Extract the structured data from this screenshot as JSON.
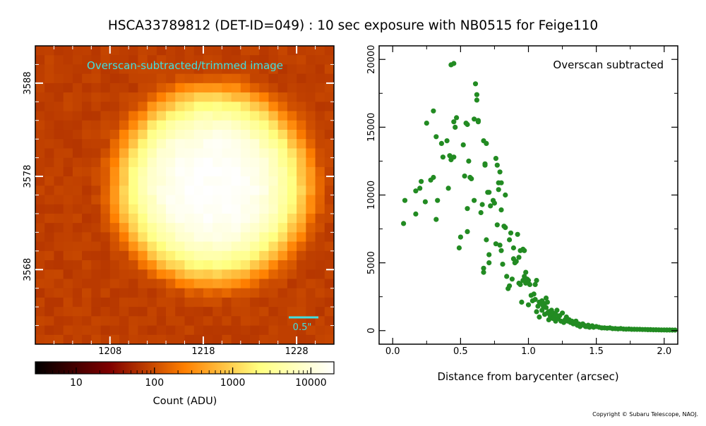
{
  "title": "HSCA33789812 (DET-ID=049) :  10 sec exposure with NB0515 for Feige110",
  "copyright": "Copyright © Subaru Telescope, NAOJ.",
  "colors": {
    "image_label": "#40e0e0",
    "scatter_point": "#228b22",
    "scale_bar": "#40e0e0"
  },
  "chart_data": [
    {
      "type": "heatmap",
      "annotation": "Overscan-subtracted/trimmed image",
      "scale_bar_label": "0.5\"",
      "x_ticks": [
        1208,
        1218,
        1228
      ],
      "y_ticks": [
        3568,
        3578,
        3588
      ],
      "xlim": [
        1200,
        1232
      ],
      "ylim": [
        3560,
        3592
      ],
      "peak_center": [
        1219,
        3577
      ],
      "peak_value": 19700,
      "background_value": 80,
      "colorbar": {
        "label": "Count (ADU)",
        "scale": "log",
        "range": [
          3,
          19700
        ],
        "tick_labels": [
          "10",
          "100",
          "1000",
          "10000"
        ],
        "tick_values": [
          10,
          100,
          1000,
          10000
        ]
      }
    },
    {
      "type": "scatter",
      "annotation": "Overscan subtracted",
      "xlabel": "Distance from barycenter (arcsec)",
      "ylabel": "",
      "xlim": [
        -0.1,
        2.1
      ],
      "ylim": [
        -1000,
        21000
      ],
      "x_ticks": [
        0.0,
        0.5,
        1.0,
        1.5,
        2.0
      ],
      "x_tick_labels": [
        "0.0",
        "0.5",
        "1.0",
        "1.5",
        "2.0"
      ],
      "y_ticks": [
        0,
        5000,
        10000,
        15000,
        20000
      ],
      "y_tick_labels": [
        "0",
        "5000",
        "10000",
        "15000",
        "20000"
      ],
      "points": [
        [
          0.08,
          7900
        ],
        [
          0.09,
          9600
        ],
        [
          0.17,
          8600
        ],
        [
          0.17,
          10300
        ],
        [
          0.2,
          10500
        ],
        [
          0.21,
          11000
        ],
        [
          0.24,
          9500
        ],
        [
          0.25,
          15300
        ],
        [
          0.28,
          11100
        ],
        [
          0.3,
          11300
        ],
        [
          0.3,
          16200
        ],
        [
          0.32,
          14300
        ],
        [
          0.32,
          8200
        ],
        [
          0.33,
          9600
        ],
        [
          0.36,
          13800
        ],
        [
          0.37,
          12800
        ],
        [
          0.4,
          14000
        ],
        [
          0.41,
          10500
        ],
        [
          0.42,
          12900
        ],
        [
          0.43,
          19600
        ],
        [
          0.43,
          12600
        ],
        [
          0.45,
          12800
        ],
        [
          0.45,
          19700
        ],
        [
          0.45,
          15400
        ],
        [
          0.46,
          15000
        ],
        [
          0.47,
          15700
        ],
        [
          0.49,
          6100
        ],
        [
          0.5,
          6900
        ],
        [
          0.52,
          13700
        ],
        [
          0.53,
          11400
        ],
        [
          0.54,
          15300
        ],
        [
          0.55,
          15200
        ],
        [
          0.55,
          7300
        ],
        [
          0.55,
          9000
        ],
        [
          0.56,
          12500
        ],
        [
          0.57,
          11300
        ],
        [
          0.58,
          11200
        ],
        [
          0.6,
          15600
        ],
        [
          0.6,
          9600
        ],
        [
          0.61,
          18200
        ],
        [
          0.62,
          17400
        ],
        [
          0.62,
          17000
        ],
        [
          0.63,
          15400
        ],
        [
          0.63,
          15500
        ],
        [
          0.65,
          8700
        ],
        [
          0.66,
          9300
        ],
        [
          0.67,
          4300
        ],
        [
          0.67,
          4600
        ],
        [
          0.67,
          14000
        ],
        [
          0.68,
          12200
        ],
        [
          0.68,
          12300
        ],
        [
          0.69,
          6700
        ],
        [
          0.69,
          13800
        ],
        [
          0.7,
          10200
        ],
        [
          0.71,
          10200
        ],
        [
          0.71,
          5600
        ],
        [
          0.71,
          5000
        ],
        [
          0.72,
          9200
        ],
        [
          0.74,
          9600
        ],
        [
          0.75,
          9400
        ],
        [
          0.76,
          12700
        ],
        [
          0.76,
          6400
        ],
        [
          0.77,
          7800
        ],
        [
          0.77,
          12200
        ],
        [
          0.78,
          10900
        ],
        [
          0.78,
          10400
        ],
        [
          0.79,
          11700
        ],
        [
          0.79,
          6300
        ],
        [
          0.8,
          10900
        ],
        [
          0.8,
          8900
        ],
        [
          0.8,
          5900
        ],
        [
          0.81,
          4900
        ],
        [
          0.82,
          7700
        ],
        [
          0.83,
          10000
        ],
        [
          0.83,
          7600
        ],
        [
          0.84,
          4000
        ],
        [
          0.85,
          3100
        ],
        [
          0.86,
          6700
        ],
        [
          0.86,
          3300
        ],
        [
          0.87,
          7200
        ],
        [
          0.88,
          3800
        ],
        [
          0.89,
          5300
        ],
        [
          0.89,
          6100
        ],
        [
          0.9,
          5000
        ],
        [
          0.91,
          5100
        ],
        [
          0.92,
          7100
        ],
        [
          0.93,
          5400
        ],
        [
          0.93,
          3500
        ],
        [
          0.94,
          3400
        ],
        [
          0.94,
          5900
        ],
        [
          0.95,
          2100
        ],
        [
          0.96,
          6000
        ],
        [
          0.96,
          3700
        ],
        [
          0.97,
          4000
        ],
        [
          0.97,
          5900
        ],
        [
          0.98,
          4300
        ],
        [
          0.98,
          3500
        ],
        [
          0.99,
          3800
        ],
        [
          1.0,
          1900
        ],
        [
          1.0,
          3700
        ],
        [
          1.01,
          3400
        ],
        [
          1.02,
          2600
        ],
        [
          1.03,
          2200
        ],
        [
          1.04,
          2700
        ],
        [
          1.05,
          3400
        ],
        [
          1.05,
          2300
        ],
        [
          1.06,
          3700
        ],
        [
          1.06,
          1400
        ],
        [
          1.07,
          1800
        ],
        [
          1.08,
          2100
        ],
        [
          1.08,
          1000
        ],
        [
          1.09,
          2000
        ],
        [
          1.1,
          1500
        ],
        [
          1.1,
          2200
        ],
        [
          1.11,
          1800
        ],
        [
          1.12,
          2000
        ],
        [
          1.12,
          1200
        ],
        [
          1.13,
          2400
        ],
        [
          1.13,
          1700
        ],
        [
          1.14,
          2100
        ],
        [
          1.14,
          1300
        ],
        [
          1.15,
          1400
        ],
        [
          1.15,
          800
        ],
        [
          1.16,
          1100
        ],
        [
          1.17,
          1500
        ],
        [
          1.18,
          1300
        ],
        [
          1.18,
          900
        ],
        [
          1.19,
          1000
        ],
        [
          1.2,
          1200
        ],
        [
          1.2,
          700
        ],
        [
          1.21,
          1500
        ],
        [
          1.22,
          900
        ],
        [
          1.23,
          1100
        ],
        [
          1.24,
          700
        ],
        [
          1.25,
          1300
        ],
        [
          1.26,
          600
        ],
        [
          1.27,
          800
        ],
        [
          1.28,
          1000
        ],
        [
          1.29,
          700
        ],
        [
          1.3,
          800
        ],
        [
          1.31,
          600
        ],
        [
          1.32,
          700
        ],
        [
          1.33,
          500
        ],
        [
          1.34,
          600
        ],
        [
          1.35,
          700
        ],
        [
          1.36,
          400
        ],
        [
          1.37,
          500
        ],
        [
          1.38,
          300
        ],
        [
          1.39,
          400
        ],
        [
          1.4,
          500
        ],
        [
          1.41,
          400
        ],
        [
          1.42,
          300
        ],
        [
          1.43,
          300
        ],
        [
          1.44,
          400
        ],
        [
          1.45,
          250
        ],
        [
          1.46,
          300
        ],
        [
          1.47,
          350
        ],
        [
          1.48,
          250
        ],
        [
          1.5,
          300
        ],
        [
          1.52,
          250
        ],
        [
          1.54,
          200
        ],
        [
          1.56,
          200
        ],
        [
          1.58,
          180
        ],
        [
          1.6,
          200
        ],
        [
          1.62,
          150
        ],
        [
          1.64,
          150
        ],
        [
          1.66,
          130
        ],
        [
          1.68,
          150
        ],
        [
          1.7,
          120
        ],
        [
          1.72,
          110
        ],
        [
          1.74,
          120
        ],
        [
          1.76,
          100
        ],
        [
          1.78,
          100
        ],
        [
          1.8,
          90
        ],
        [
          1.82,
          90
        ],
        [
          1.84,
          80
        ],
        [
          1.86,
          80
        ],
        [
          1.88,
          70
        ],
        [
          1.9,
          70
        ],
        [
          1.92,
          60
        ],
        [
          1.94,
          60
        ],
        [
          1.96,
          55
        ],
        [
          1.98,
          50
        ],
        [
          2.0,
          50
        ],
        [
          2.02,
          45
        ],
        [
          2.04,
          45
        ],
        [
          2.06,
          40
        ],
        [
          2.08,
          40
        ]
      ]
    }
  ]
}
